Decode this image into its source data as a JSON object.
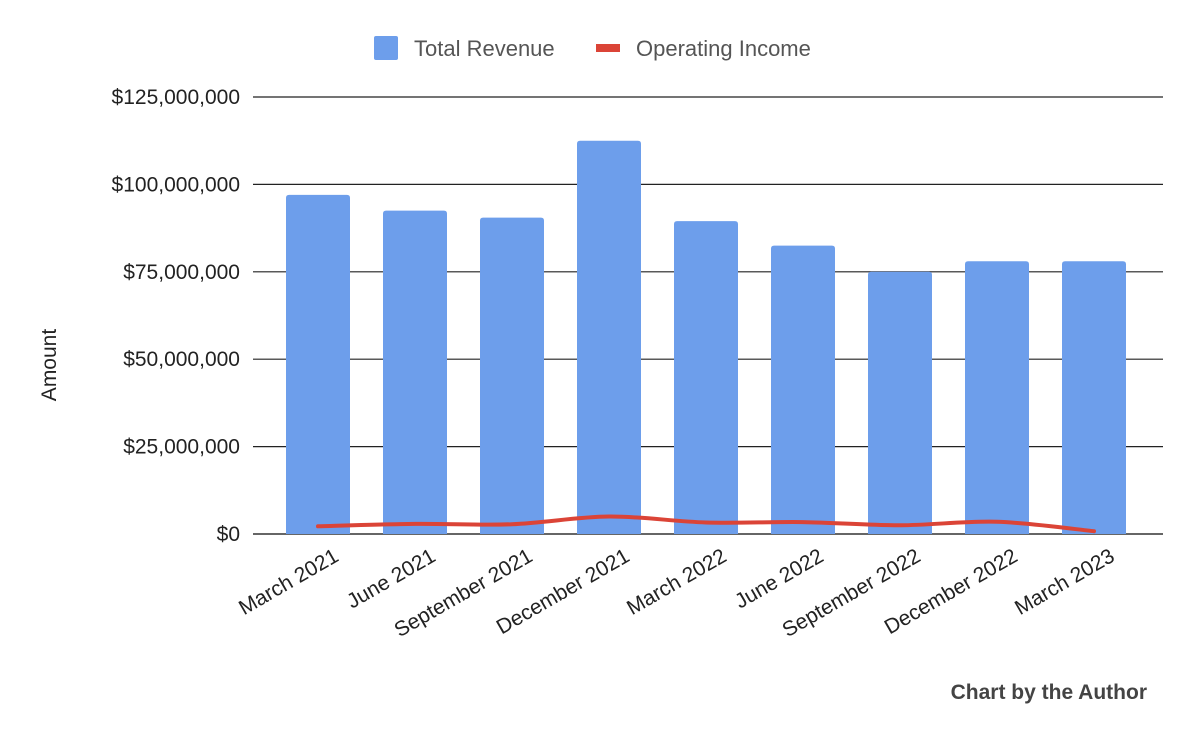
{
  "chart_data": {
    "type": "bar",
    "categories": [
      "March 2021",
      "June 2021",
      "September 2021",
      "December 2021",
      "March 2022",
      "June 2022",
      "September 2022",
      "December 2022",
      "March 2023"
    ],
    "series": [
      {
        "name": "Total Revenue",
        "type": "bar",
        "color": "#6d9eeb",
        "values": [
          97000000,
          92500000,
          90500000,
          112500000,
          89500000,
          82500000,
          75000000,
          78000000,
          78000000
        ]
      },
      {
        "name": "Operating Income",
        "type": "line",
        "color": "#db4437",
        "values": [
          2200000,
          2900000,
          2800000,
          5000000,
          3300000,
          3400000,
          2500000,
          3500000,
          800000
        ]
      }
    ],
    "ylabel": "Amount",
    "xlabel": "",
    "ylim": [
      0,
      125000000
    ],
    "yticks": [
      {
        "value": 0,
        "label": "$0"
      },
      {
        "value": 25000000,
        "label": "$25,000,000"
      },
      {
        "value": 50000000,
        "label": "$50,000,000"
      },
      {
        "value": 75000000,
        "label": "$75,000,000"
      },
      {
        "value": 100000000,
        "label": "$100,000,000"
      },
      {
        "value": 125000000,
        "label": "$125,000,000"
      }
    ],
    "grid": true,
    "legend_position": "top-center",
    "credit": "Chart by the Author"
  }
}
